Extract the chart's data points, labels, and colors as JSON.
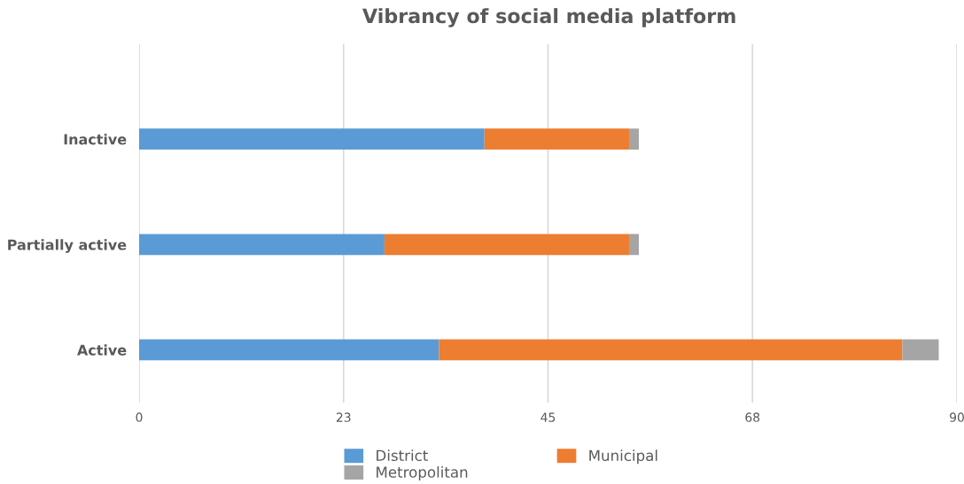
{
  "chart_data": {
    "type": "bar",
    "orientation": "horizontal",
    "stacked": true,
    "title": "Vibrancy of social media platform",
    "categories": [
      "Inactive",
      "Partially active",
      "Active"
    ],
    "series": [
      {
        "name": "District",
        "color": "#5b9bd5",
        "values": [
          38,
          27,
          33
        ]
      },
      {
        "name": "Municipal",
        "color": "#ed7d31",
        "values": [
          16,
          27,
          51
        ]
      },
      {
        "name": "Metropolitan",
        "color": "#a5a5a5",
        "values": [
          1,
          1,
          4
        ]
      }
    ],
    "xlim": [
      0,
      90
    ],
    "xticks": [
      0,
      {
        "value": 22.5,
        "label": "23"
      },
      45,
      {
        "value": 67.5,
        "label": "68"
      },
      90
    ],
    "grid": "x",
    "legend": "bottom"
  }
}
